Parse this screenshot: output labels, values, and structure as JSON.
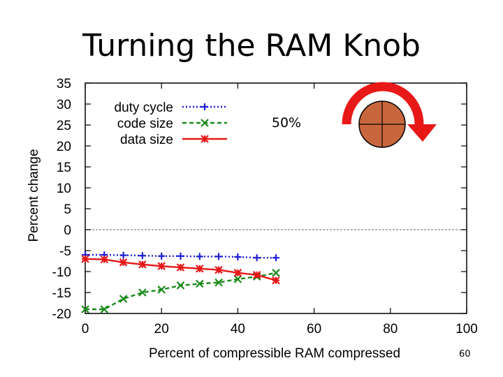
{
  "slide": {
    "title": "Turning the RAM Knob",
    "number": "60"
  },
  "annotation": {
    "text": "50%"
  },
  "colors": {
    "duty": "#1f1fd6",
    "code": "#1a8a1a",
    "data": "#e81818",
    "knob_fill": "#c8673d",
    "arrow": "#e81818",
    "zero_line": "#9a9a9a"
  },
  "icons": {
    "knob": "ram-knob-icon",
    "arrow": "rotate-clockwise-arrow-icon"
  },
  "chart_data": {
    "type": "line",
    "title": "",
    "xlabel": "Percent of compressible RAM compressed",
    "ylabel": "Percent change",
    "xlim": [
      0,
      100
    ],
    "ylim": [
      -20,
      35
    ],
    "xticks": [
      0,
      20,
      40,
      60,
      80,
      100
    ],
    "yticks": [
      35,
      30,
      25,
      20,
      15,
      10,
      5,
      0,
      -5,
      -10,
      -15,
      -20
    ],
    "reference_line": 0,
    "legend_position": "top-left",
    "x": [
      0,
      5,
      10,
      15,
      20,
      25,
      30,
      35,
      40,
      45,
      50
    ],
    "series": [
      {
        "name": "duty cycle",
        "marker": "+",
        "dash": "dotted",
        "color": "#1f1fd6",
        "values": [
          -6,
          -6,
          -6.1,
          -6.2,
          -6.3,
          -6.3,
          -6.4,
          -6.4,
          -6.5,
          -6.7,
          -6.7
        ]
      },
      {
        "name": "code size",
        "marker": "x",
        "dash": "dashed",
        "color": "#1a8a1a",
        "values": [
          -19,
          -19,
          -16.5,
          -15,
          -14.3,
          -13.3,
          -12.9,
          -12.6,
          -11.8,
          -11.2,
          -10.3
        ]
      },
      {
        "name": "data size",
        "marker": "*",
        "dash": "solid",
        "color": "#e81818",
        "values": [
          -7,
          -7.1,
          -7.8,
          -8.3,
          -8.7,
          -9,
          -9.3,
          -9.6,
          -10.3,
          -10.8,
          -12.1
        ]
      }
    ]
  }
}
